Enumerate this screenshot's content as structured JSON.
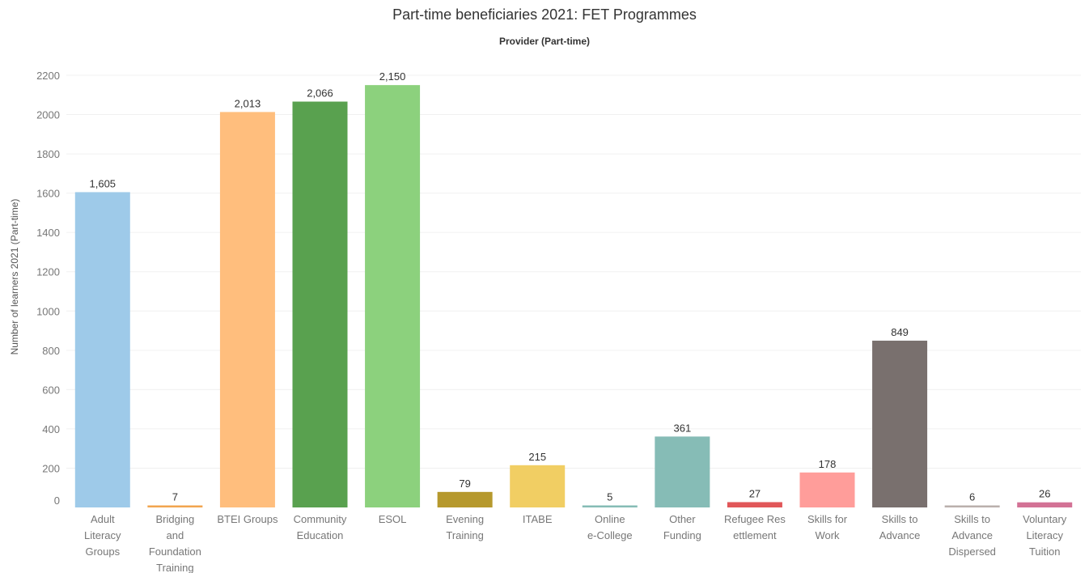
{
  "chart_data": {
    "type": "bar",
    "title": "Part-time beneficiaries 2021: FET Programmes",
    "subtitle": "Provider (Part-time)",
    "ylabel": "Number of learners 2021 (Part-time)",
    "xlabel": "",
    "ylim": [
      0,
      2200
    ],
    "yticks": [
      0,
      200,
      400,
      600,
      800,
      1000,
      1200,
      1400,
      1600,
      1800,
      2000,
      2200
    ],
    "grid": true,
    "categories": [
      [
        "Adult",
        "Literacy",
        "Groups"
      ],
      [
        "Bridging",
        "and",
        "Foundation",
        "Training"
      ],
      [
        "BTEI Groups"
      ],
      [
        "Community",
        "Education"
      ],
      [
        "ESOL"
      ],
      [
        "Evening",
        "Training"
      ],
      [
        "ITABE"
      ],
      [
        "Online",
        "e-College"
      ],
      [
        "Other",
        "Funding"
      ],
      [
        "Refugee Res",
        "ettlement"
      ],
      [
        "Skills for",
        "Work"
      ],
      [
        "Skills to",
        "Advance"
      ],
      [
        "Skills to",
        "Advance",
        "Dispersed"
      ],
      [
        "Voluntary",
        "Literacy",
        "Tuition"
      ]
    ],
    "values": [
      1605,
      7,
      2013,
      2066,
      2150,
      79,
      215,
      5,
      361,
      27,
      178,
      849,
      6,
      26
    ],
    "value_labels": [
      "1,605",
      "7",
      "2,013",
      "2,066",
      "2,150",
      "79",
      "215",
      "5",
      "361",
      "27",
      "178",
      "849",
      "6",
      "26"
    ],
    "colors": [
      "#9ECAE9",
      "#F2A550",
      "#FFBE7D",
      "#59A14F",
      "#8CD17D",
      "#B6992D",
      "#F1CE63",
      "#86BCB6",
      "#86BCB6",
      "#E15759",
      "#FF9D9A",
      "#79706E",
      "#BAB0AC",
      "#D37295"
    ]
  }
}
